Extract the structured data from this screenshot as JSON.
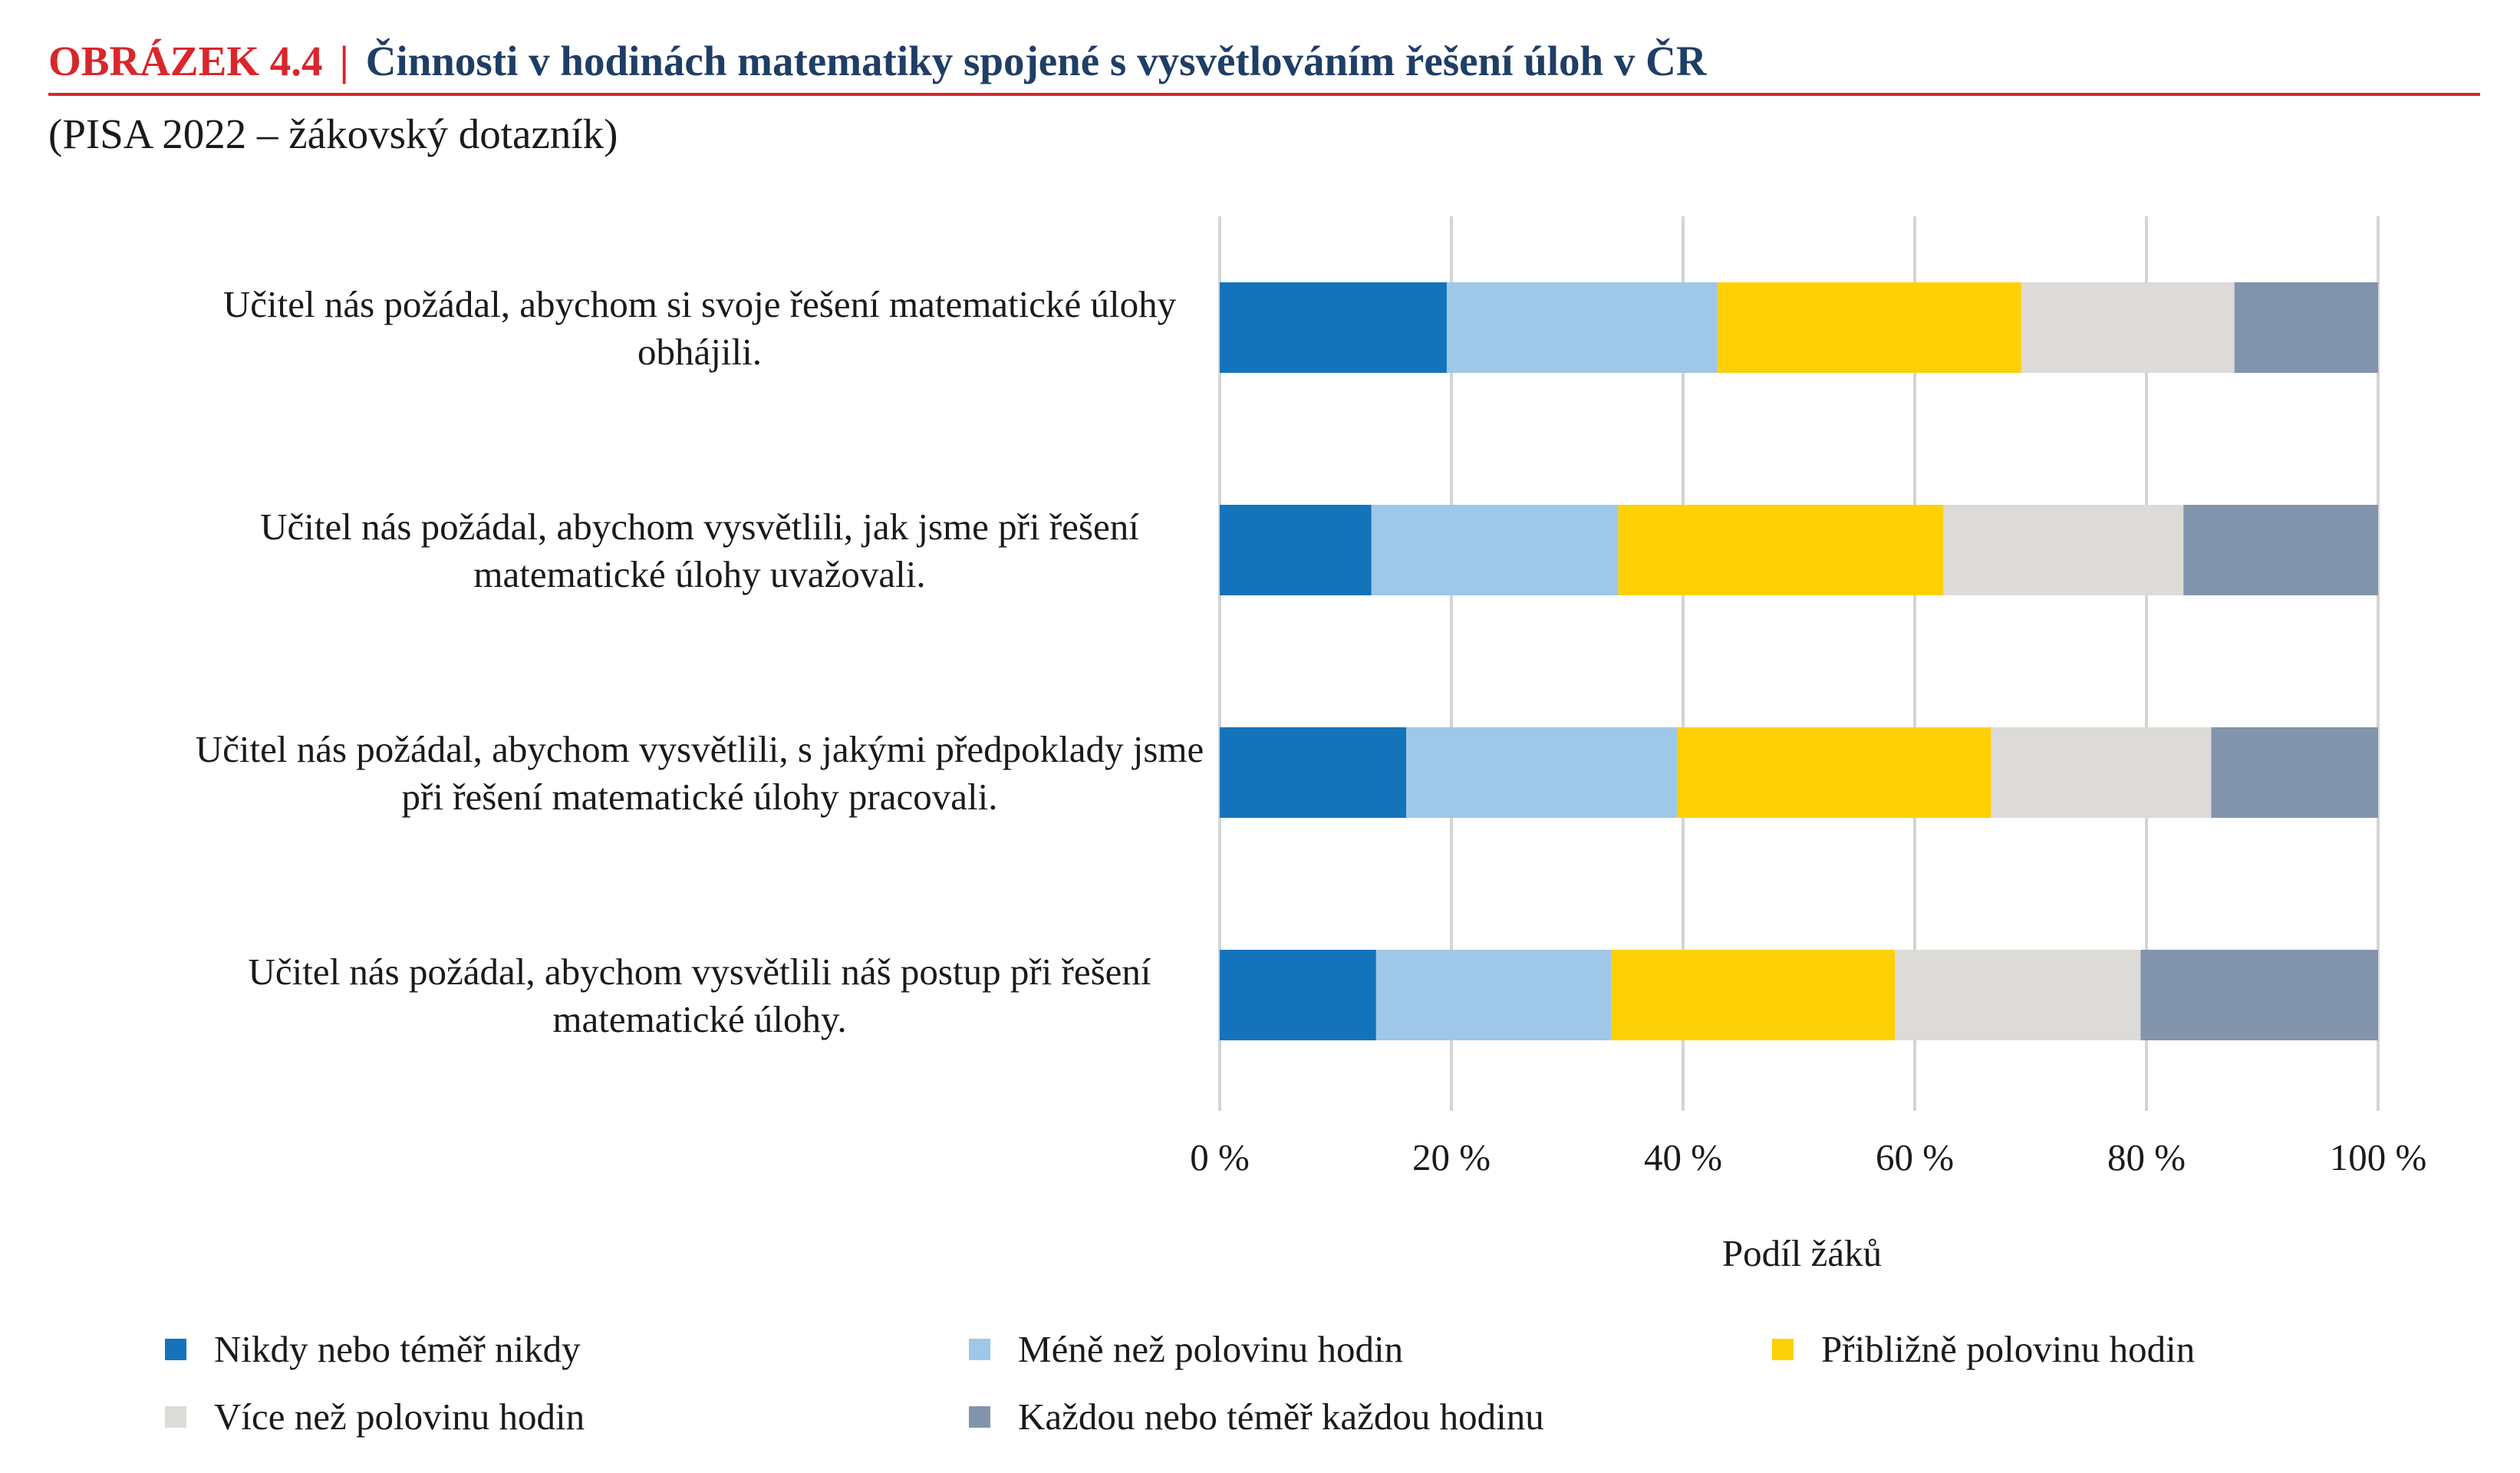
{
  "header": {
    "figure_label": "OBRÁZEK 4.4",
    "separator": "|",
    "title": "Činnosti v hodinách matematiky spojené s vysvětlováním řešení úloh v ČR",
    "subtitle": "(PISA 2022 – žákovský dotazník)"
  },
  "chart_data": {
    "type": "bar",
    "orientation": "horizontal",
    "stacked": true,
    "categories": [
      [
        "Učitel nás požádal, abychom si svoje řešení matematické úlohy",
        "obhájili."
      ],
      [
        "Učitel nás požádal, abychom vysvětlili, jak jsme při řešení",
        "matematické úlohy uvažovali."
      ],
      [
        "Učitel nás požádal, abychom vysvětlili, s jakými předpoklady jsme",
        "při řešení matematické úlohy pracovali."
      ],
      [
        "Učitel nás požádal, abychom vysvětlili náš postup při řešení",
        "matematické úlohy."
      ]
    ],
    "series": [
      {
        "name": "Nikdy nebo téměř nikdy",
        "color": "#1473bb",
        "values": [
          19.6,
          13.1,
          16.1,
          13.5
        ]
      },
      {
        "name": "Méně než polovinu hodin",
        "color": "#9fc7e8",
        "values": [
          23.4,
          21.3,
          23.4,
          20.3
        ]
      },
      {
        "name": "Přibližně polovinu hodin",
        "color": "#fdd106",
        "values": [
          26.2,
          28.1,
          27.1,
          24.5
        ]
      },
      {
        "name": "Více než polovinu hodin",
        "color": "#dcdbd8",
        "values": [
          18.4,
          20.7,
          19.0,
          21.2
        ]
      },
      {
        "name": "Každou nebo téměř každou hodinu",
        "color": "#8294ab",
        "values": [
          12.4,
          16.8,
          14.4,
          20.5
        ]
      }
    ],
    "xlim": [
      0,
      100
    ],
    "xticks": [
      "0 %",
      "20 %",
      "40 %",
      "60 %",
      "80 %",
      "100 %"
    ],
    "xlabel": "Podíl žáků",
    "grid": true,
    "legend_position": "bottom"
  }
}
